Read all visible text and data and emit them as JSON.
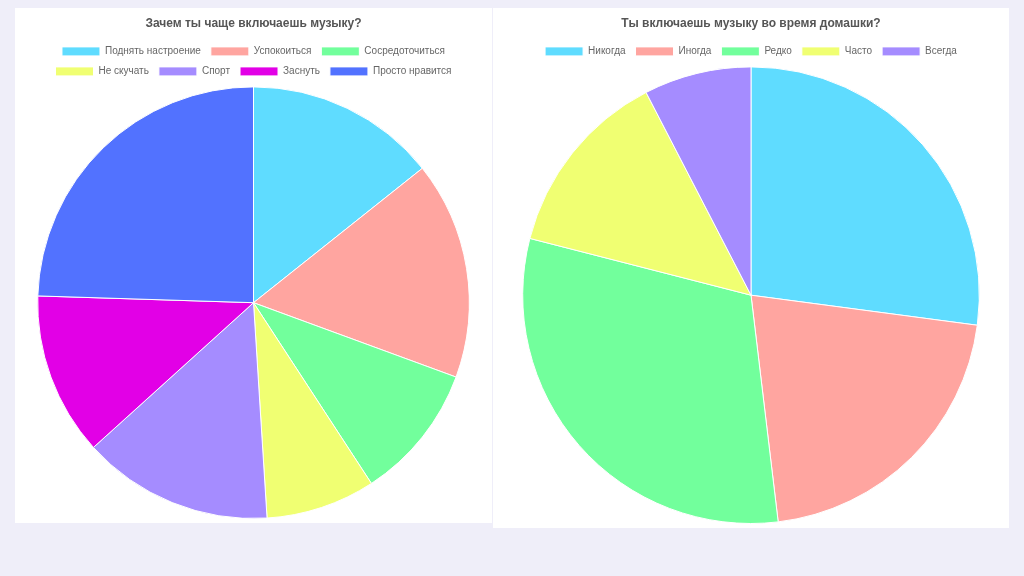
{
  "chart_data": [
    {
      "type": "pie",
      "title": "Зачем ты чаще включаешь музыку?",
      "legend": "top",
      "categories": [
        "Поднять настроение",
        "Успокоиться",
        "Сосредоточиться",
        "Не скучать",
        "Спорт",
        "Заснуть",
        "Просто нравится"
      ],
      "values": [
        14.3,
        16.3,
        10.2,
        8.2,
        14.3,
        12.2,
        24.5
      ],
      "colors": [
        "#5fdcff",
        "#ffa5a0",
        "#72ff9c",
        "#f0ff72",
        "#a58cff",
        "#e200e6",
        "#5272ff"
      ]
    },
    {
      "type": "pie",
      "title": "Ты включаешь музыку во время домашки?",
      "legend": "top",
      "categories": [
        "Никогда",
        "Иногда",
        "Редко",
        "Часто",
        "Всегда"
      ],
      "values": [
        27.1,
        21.0,
        30.9,
        13.4,
        7.6
      ],
      "colors": [
        "#5fdcff",
        "#ffa5a0",
        "#72ff9c",
        "#f0ff72",
        "#a58cff"
      ]
    }
  ]
}
